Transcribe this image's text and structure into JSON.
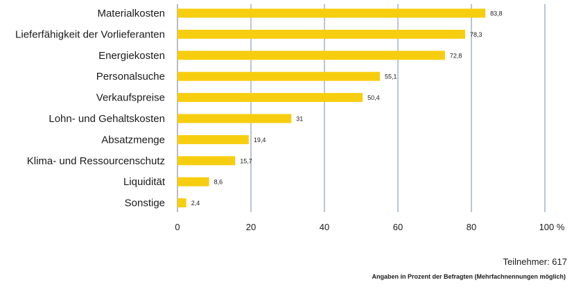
{
  "chart_data": {
    "type": "bar",
    "orientation": "horizontal",
    "categories": [
      "Materialkosten",
      "Lieferfähigkeit der Vorlieferanten",
      "Energiekosten",
      "Personalsuche",
      "Verkaufspreise",
      "Lohn- und Gehaltskosten",
      "Absatzmenge",
      "Klima- und Ressourcenschutz",
      "Liquidität",
      "Sonstige"
    ],
    "values": [
      83.8,
      78.3,
      72.8,
      55.1,
      50.4,
      31,
      19.4,
      15.7,
      8.6,
      2.4
    ],
    "value_labels": [
      "83,8",
      "78,3",
      "72,8",
      "55,1",
      "50,4",
      "31",
      "19,4",
      "15,7",
      "8,6",
      "2,4"
    ],
    "xlim": [
      0,
      100
    ],
    "xticks": [
      0,
      20,
      40,
      60,
      80,
      100
    ],
    "xtick_labels": [
      "0",
      "20",
      "40",
      "60",
      "80",
      "100 %"
    ],
    "grid": true,
    "bar_color": "#f7ce0f",
    "grid_color": "#8ea0b4"
  },
  "participants_label": "Teilnehmer: 617",
  "footnote": "Angaben in Prozent der Befragten (Mehrfachnennungen möglich)"
}
